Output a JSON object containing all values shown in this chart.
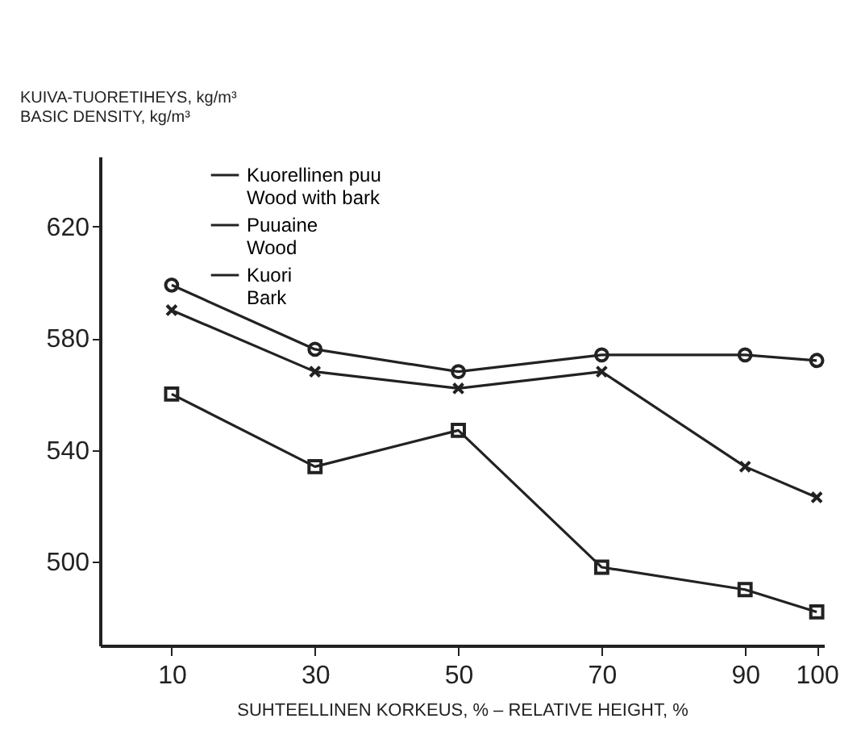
{
  "chart_data": {
    "type": "line",
    "ylabel": "KUIVA-TUORETIHEYS, kg/m³\nBASIC DENSITY, kg/m³",
    "xlabel": "SUHTEELLINEN KORKEUS, % – RELATIVE HEIGHT, %",
    "x": [
      10,
      30,
      50,
      70,
      90,
      100
    ],
    "xlim": [
      0,
      101
    ],
    "xticks": [
      10,
      30,
      50,
      70,
      90,
      100
    ],
    "ylim": [
      470,
      645
    ],
    "yticks": [
      500,
      540,
      580,
      620
    ],
    "grid": false,
    "legend": "top left",
    "line_style": "solid",
    "series": [
      {
        "name": "Kuorellinen puu\nWood with bark",
        "color": "#222222",
        "marker": "circle",
        "values": [
          599,
          576,
          568,
          574,
          574,
          572
        ]
      },
      {
        "name": "Puuaine\nWood",
        "color": "#222222",
        "marker": "cross",
        "values": [
          590,
          568,
          562,
          568,
          534,
          523
        ]
      },
      {
        "name": "Kuori\nBark",
        "color": "#222222",
        "marker": "square",
        "values": [
          560,
          534,
          547,
          498,
          490,
          482
        ]
      }
    ]
  }
}
